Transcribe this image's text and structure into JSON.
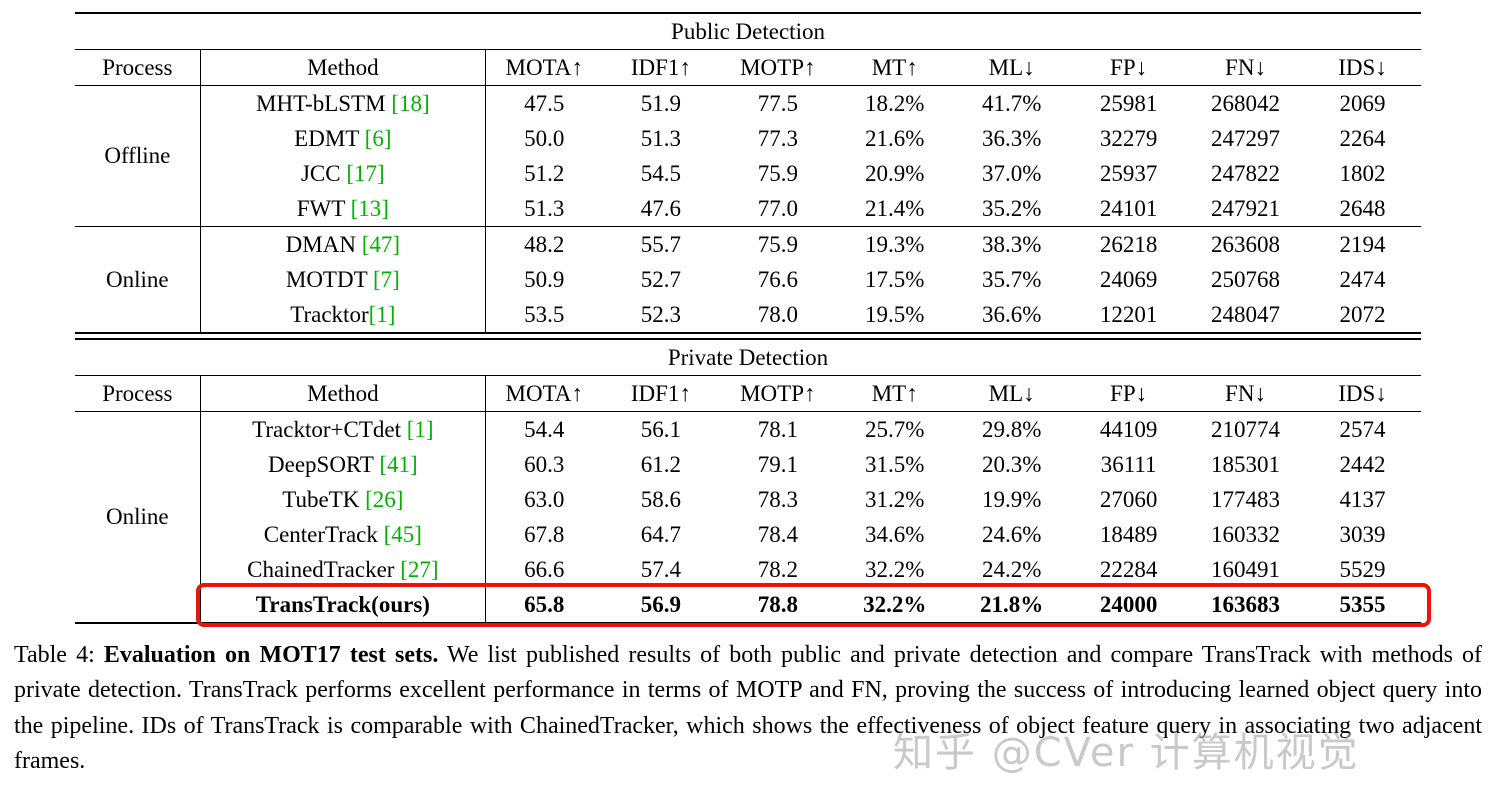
{
  "colors": {
    "citation_green": "#00b300",
    "highlight_red": "#ee1208",
    "watermark_gray": "#a8a8a8"
  },
  "tables": [
    {
      "id": "public",
      "title": "Public Detection",
      "columns": [
        "Process",
        "Method",
        "MOTA↑",
        "IDF1↑",
        "MOTP↑",
        "MT↑",
        "ML↓",
        "FP↓",
        "FN↓",
        "IDS↓"
      ],
      "groups": [
        {
          "process": "Offline",
          "rows": [
            {
              "method": "MHT-bLSTM",
              "cite": "[18]",
              "sep": " ",
              "values": [
                "47.5",
                "51.9",
                "77.5",
                "18.2%",
                "41.7%",
                "25981",
                "268042",
                "2069"
              ]
            },
            {
              "method": "EDMT",
              "cite": "[6]",
              "sep": " ",
              "values": [
                "50.0",
                "51.3",
                "77.3",
                "21.6%",
                "36.3%",
                "32279",
                "247297",
                "2264"
              ]
            },
            {
              "method": "JCC",
              "cite": "[17]",
              "sep": " ",
              "values": [
                "51.2",
                "54.5",
                "75.9",
                "20.9%",
                "37.0%",
                "25937",
                "247822",
                "1802"
              ]
            },
            {
              "method": "FWT",
              "cite": "[13]",
              "sep": " ",
              "values": [
                "51.3",
                "47.6",
                "77.0",
                "21.4%",
                "35.2%",
                "24101",
                "247921",
                "2648"
              ]
            }
          ]
        },
        {
          "process": "Online",
          "rows": [
            {
              "method": "DMAN",
              "cite": "[47]",
              "sep": " ",
              "values": [
                "48.2",
                "55.7",
                "75.9",
                "19.3%",
                "38.3%",
                "26218",
                "263608",
                "2194"
              ]
            },
            {
              "method": "MOTDT",
              "cite": "[7]",
              "sep": " ",
              "values": [
                "50.9",
                "52.7",
                "76.6",
                "17.5%",
                "35.7%",
                "24069",
                "250768",
                "2474"
              ]
            },
            {
              "method": "Tracktor",
              "cite": "[1]",
              "sep": "",
              "values": [
                "53.5",
                "52.3",
                "78.0",
                "19.5%",
                "36.6%",
                "12201",
                "248047",
                "2072"
              ]
            }
          ]
        }
      ]
    },
    {
      "id": "private",
      "title": "Private Detection",
      "columns": [
        "Process",
        "Method",
        "MOTA↑",
        "IDF1↑",
        "MOTP↑",
        "MT↑",
        "ML↓",
        "FP↓",
        "FN↓",
        "IDS↓"
      ],
      "groups": [
        {
          "process": "Online",
          "rows": [
            {
              "method": "Tracktor+CTdet",
              "cite": "[1]",
              "sep": " ",
              "values": [
                "54.4",
                "56.1",
                "78.1",
                "25.7%",
                "29.8%",
                "44109",
                "210774",
                "2574"
              ]
            },
            {
              "method": "DeepSORT",
              "cite": "[41]",
              "sep": " ",
              "values": [
                "60.3",
                "61.2",
                "79.1",
                "31.5%",
                "20.3%",
                "36111",
                "185301",
                "2442"
              ]
            },
            {
              "method": "TubeTK",
              "cite": "[26]",
              "sep": " ",
              "values": [
                "63.0",
                "58.6",
                "78.3",
                "31.2%",
                "19.9%",
                "27060",
                "177483",
                "4137"
              ]
            },
            {
              "method": "CenterTrack",
              "cite": "[45]",
              "sep": " ",
              "values": [
                "67.8",
                "64.7",
                "78.4",
                "34.6%",
                "24.6%",
                "18489",
                "160332",
                "3039"
              ]
            },
            {
              "method": "ChainedTracker",
              "cite": "[27]",
              "sep": " ",
              "values": [
                "66.6",
                "57.4",
                "78.2",
                "32.2%",
                "24.2%",
                "22284",
                "160491",
                "5529"
              ]
            },
            {
              "method": "TransTrack(ours)",
              "cite": "",
              "sep": "",
              "bold": true,
              "highlight": true,
              "values": [
                "65.8",
                "56.9",
                "78.8",
                "32.2%",
                "21.8%",
                "24000",
                "163683",
                "5355"
              ]
            }
          ]
        }
      ]
    }
  ],
  "caption": {
    "label": "Table 4:",
    "bold": "Evaluation on MOT17 test sets.",
    "text": "We list published results of both public and private detection and compare TransTrack with methods of private detection. TransTrack performs excellent performance in terms of MOTP and FN, proving the success of introducing learned object query into the pipeline. IDs of TransTrack is comparable with ChainedTracker, which shows the effectiveness of object feature query in associating two adjacent frames."
  },
  "watermark": "知乎 @CVer 计算机视觉"
}
